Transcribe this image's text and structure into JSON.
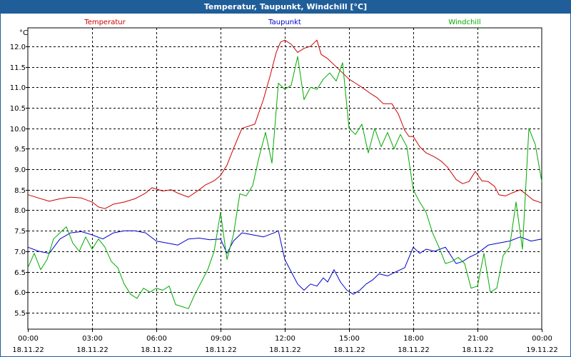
{
  "window": {
    "title": "Temperatur, Taupunkt, Windchill [°C]"
  },
  "chart_data": {
    "type": "line",
    "title": "Temperatur, Taupunkt, Windchill [°C]",
    "ylabel": "°C",
    "ylim": [
      5.1,
      12.45
    ],
    "yticks": [
      5.5,
      6.0,
      6.5,
      7.0,
      7.5,
      8.0,
      8.5,
      9.0,
      9.5,
      10.0,
      10.5,
      11.0,
      11.5,
      12.0
    ],
    "ytick_labels": [
      "5.5",
      "6.0",
      "6.5",
      "7.0",
      "7.5",
      "8.0",
      "8.5",
      "9.0",
      "9.5",
      "10.0",
      "10.5",
      "11.0",
      "11.5",
      "12.0"
    ],
    "xlim": [
      0,
      24
    ],
    "xticks": [
      0,
      3,
      6,
      9,
      12,
      15,
      18,
      21,
      24
    ],
    "xtick_labels": [
      {
        "time": "00:00",
        "date": "18.11.22"
      },
      {
        "time": "03:00",
        "date": "18.11.22"
      },
      {
        "time": "06:00",
        "date": "18.11.22"
      },
      {
        "time": "09:00",
        "date": "18.11.22"
      },
      {
        "time": "12:00",
        "date": "18.11.22"
      },
      {
        "time": "15:00",
        "date": "18.11.22"
      },
      {
        "time": "18:00",
        "date": "18.11.22"
      },
      {
        "time": "21:00",
        "date": "18.11.22"
      },
      {
        "time": "00:00",
        "date": "19.11.22"
      }
    ],
    "grid": true,
    "legend_position": "top",
    "series": [
      {
        "name": "Temperatur",
        "color": "#cc0000",
        "x": [
          0,
          0.5,
          1,
          1.5,
          2,
          2.5,
          3,
          3.3,
          3.6,
          4,
          4.5,
          5,
          5.5,
          5.8,
          6.3,
          6.7,
          7,
          7.5,
          8,
          8.3,
          8.7,
          9,
          9.3,
          9.6,
          10,
          10.3,
          10.6,
          11,
          11.3,
          11.6,
          11.8,
          12,
          12.3,
          12.6,
          12.9,
          13.2,
          13.5,
          13.7,
          14,
          14.3,
          14.6,
          15,
          15.3,
          15.6,
          16,
          16.3,
          16.6,
          17,
          17.3,
          17.6,
          17.8,
          18,
          18.3,
          18.6,
          19,
          19.3,
          19.6,
          20,
          20.3,
          20.6,
          20.9,
          21.2,
          21.5,
          21.8,
          22,
          22.3,
          22.6,
          23,
          23.3,
          23.6,
          24
        ],
        "y": [
          8.38,
          8.3,
          8.22,
          8.28,
          8.32,
          8.3,
          8.2,
          8.08,
          8.04,
          8.15,
          8.2,
          8.28,
          8.42,
          8.55,
          8.47,
          8.5,
          8.42,
          8.32,
          8.5,
          8.62,
          8.72,
          8.85,
          9.1,
          9.5,
          10.0,
          10.05,
          10.1,
          10.7,
          11.25,
          11.85,
          12.1,
          12.15,
          12.05,
          11.85,
          11.95,
          12.0,
          12.15,
          11.8,
          11.7,
          11.55,
          11.4,
          11.2,
          11.1,
          11.0,
          10.85,
          10.75,
          10.6,
          10.6,
          10.35,
          9.95,
          9.8,
          9.8,
          9.55,
          9.4,
          9.3,
          9.2,
          9.05,
          8.75,
          8.65,
          8.7,
          8.95,
          8.72,
          8.7,
          8.58,
          8.38,
          8.35,
          8.42,
          8.5,
          8.38,
          8.25,
          8.18
        ]
      },
      {
        "name": "Taupunkt",
        "color": "#0000cc",
        "x": [
          0,
          0.5,
          1,
          1.5,
          2,
          2.5,
          3,
          3.5,
          4,
          4.5,
          5,
          5.5,
          6,
          6.5,
          7,
          7.5,
          8,
          8.5,
          9,
          9.3,
          9.6,
          10,
          10.5,
          11,
          11.5,
          11.7,
          12,
          12.3,
          12.6,
          12.9,
          13.2,
          13.5,
          13.8,
          14,
          14.3,
          14.6,
          14.9,
          15.2,
          15.5,
          15.8,
          16.1,
          16.4,
          16.8,
          17.2,
          17.6,
          18,
          18.3,
          18.6,
          19,
          19.5,
          20,
          20.3,
          20.6,
          21,
          21.5,
          22,
          22.5,
          23,
          23.5,
          24
        ],
        "y": [
          7.1,
          7.0,
          6.95,
          7.3,
          7.45,
          7.48,
          7.4,
          7.3,
          7.45,
          7.5,
          7.5,
          7.45,
          7.25,
          7.2,
          7.15,
          7.3,
          7.32,
          7.28,
          7.3,
          6.95,
          7.25,
          7.45,
          7.4,
          7.35,
          7.45,
          7.5,
          6.8,
          6.5,
          6.2,
          6.05,
          6.2,
          6.15,
          6.35,
          6.25,
          6.55,
          6.25,
          6.05,
          5.95,
          6.05,
          6.2,
          6.3,
          6.45,
          6.4,
          6.5,
          6.6,
          7.1,
          6.95,
          7.05,
          7.0,
          7.1,
          6.7,
          6.75,
          6.85,
          6.95,
          7.15,
          7.2,
          7.25,
          7.35,
          7.25,
          7.3
        ]
      },
      {
        "name": "Windchill",
        "color": "#00aa00",
        "x": [
          0,
          0.3,
          0.6,
          0.9,
          1.2,
          1.5,
          1.8,
          2.1,
          2.4,
          2.7,
          3,
          3.3,
          3.6,
          3.9,
          4.2,
          4.5,
          4.8,
          5.1,
          5.4,
          5.7,
          6,
          6.3,
          6.6,
          6.9,
          7.2,
          7.5,
          7.8,
          8.1,
          8.4,
          8.7,
          9,
          9.3,
          9.6,
          9.9,
          10.2,
          10.5,
          10.8,
          11.1,
          11.4,
          11.7,
          12,
          12.3,
          12.6,
          12.9,
          13.2,
          13.5,
          13.8,
          14.1,
          14.4,
          14.7,
          15,
          15.3,
          15.6,
          15.9,
          16.2,
          16.5,
          16.8,
          17.1,
          17.4,
          17.7,
          18,
          18.3,
          18.6,
          18.9,
          19.2,
          19.5,
          19.8,
          20.1,
          20.4,
          20.7,
          21,
          21.3,
          21.6,
          21.9,
          22.2,
          22.5,
          22.8,
          23.1,
          23.4,
          23.7,
          24
        ],
        "y": [
          6.6,
          6.95,
          6.55,
          6.8,
          7.3,
          7.45,
          7.6,
          7.2,
          7.0,
          7.35,
          7.05,
          7.3,
          7.1,
          6.75,
          6.6,
          6.2,
          5.95,
          5.85,
          6.1,
          6.0,
          6.1,
          6.05,
          6.15,
          5.7,
          5.65,
          5.6,
          5.95,
          6.25,
          6.55,
          7.0,
          7.95,
          6.8,
          7.4,
          8.4,
          8.35,
          8.6,
          9.3,
          9.9,
          9.15,
          11.1,
          10.95,
          11.05,
          11.75,
          10.7,
          11.0,
          10.95,
          11.2,
          11.35,
          11.15,
          11.6,
          10.0,
          9.85,
          10.1,
          9.4,
          10.0,
          9.55,
          9.9,
          9.5,
          9.85,
          9.55,
          8.5,
          8.2,
          7.95,
          7.45,
          7.1,
          6.7,
          6.75,
          6.85,
          6.7,
          6.1,
          6.15,
          6.95,
          6.0,
          6.1,
          6.9,
          7.1,
          8.2,
          7.05,
          10.0,
          9.6,
          8.7
        ]
      }
    ]
  }
}
